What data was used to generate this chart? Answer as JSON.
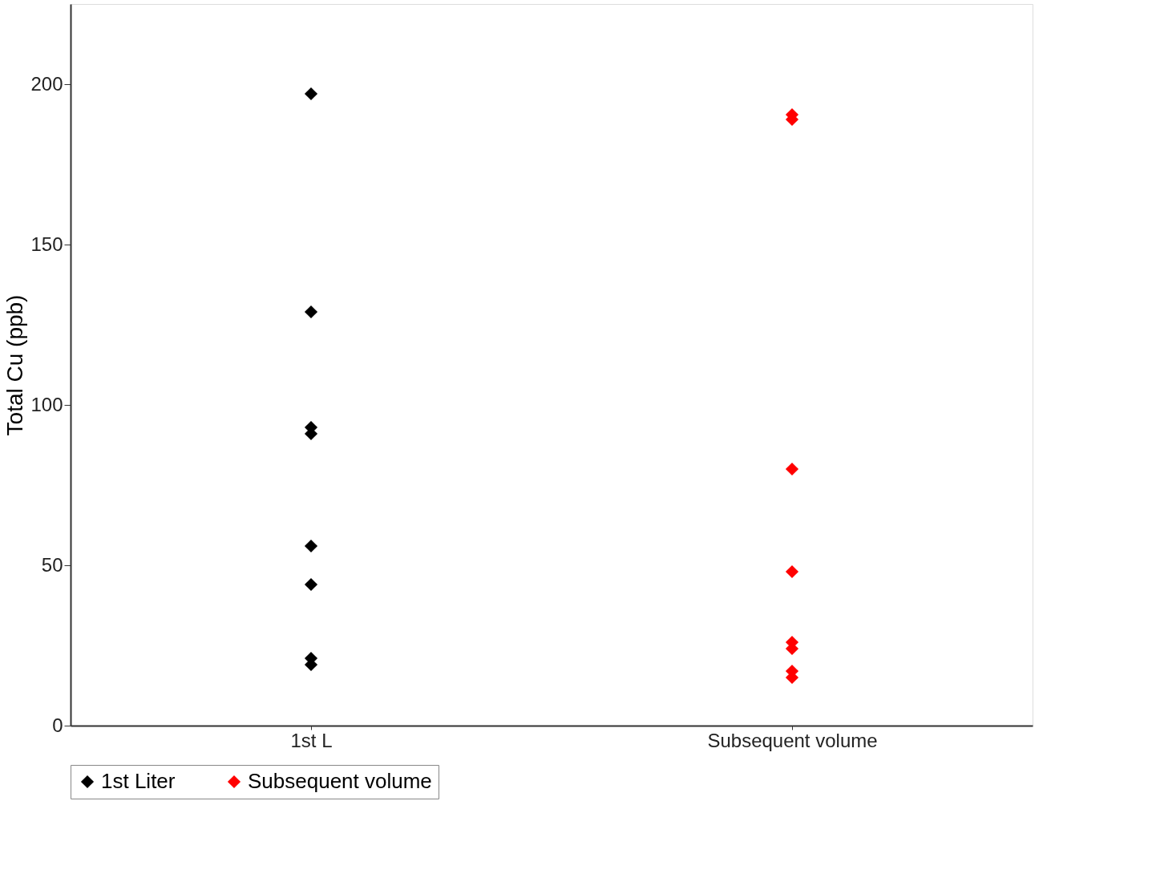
{
  "chart_data": {
    "type": "scatter",
    "ylabel": "Total Cu (ppb)",
    "categories": [
      "1st L",
      "Subsequent volume"
    ],
    "series": [
      {
        "name": "1st Liter",
        "color": "#000000",
        "x": [
          "1st L",
          "1st L",
          "1st L",
          "1st L",
          "1st L",
          "1st L",
          "1st L",
          "1st L"
        ],
        "values": [
          197,
          129,
          93,
          91,
          56,
          44,
          21,
          19
        ]
      },
      {
        "name": "Subsequent volume",
        "color": "#ff0000",
        "x": [
          "Subsequent volume",
          "Subsequent volume",
          "Subsequent volume",
          "Subsequent volume",
          "Subsequent volume",
          "Subsequent volume",
          "Subsequent volume",
          "Subsequent volume"
        ],
        "values": [
          190.5,
          189,
          80,
          48,
          26,
          24,
          17,
          15
        ]
      }
    ],
    "ylim": [
      0,
      225
    ],
    "yticks": [
      0,
      50,
      100,
      150,
      200
    ],
    "grid": false,
    "legend": "bottom",
    "marker": "diamond"
  }
}
